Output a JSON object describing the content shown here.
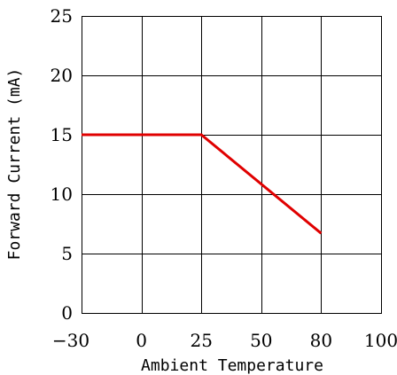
{
  "chart_data": {
    "type": "line",
    "title": "",
    "xlabel": "Ambient Temperature",
    "ylabel": "Forward Current (mA)",
    "x_ticks": [
      "-30",
      "0",
      "25",
      "50",
      "80",
      "100"
    ],
    "y_ticks": [
      0,
      5,
      10,
      15,
      20,
      25
    ],
    "ylim": [
      0,
      25
    ],
    "grid": true,
    "series": [
      {
        "color": "#e00000",
        "x": [
          -30,
          25,
          80
        ],
        "y": [
          15,
          15,
          6.7
        ]
      }
    ]
  }
}
